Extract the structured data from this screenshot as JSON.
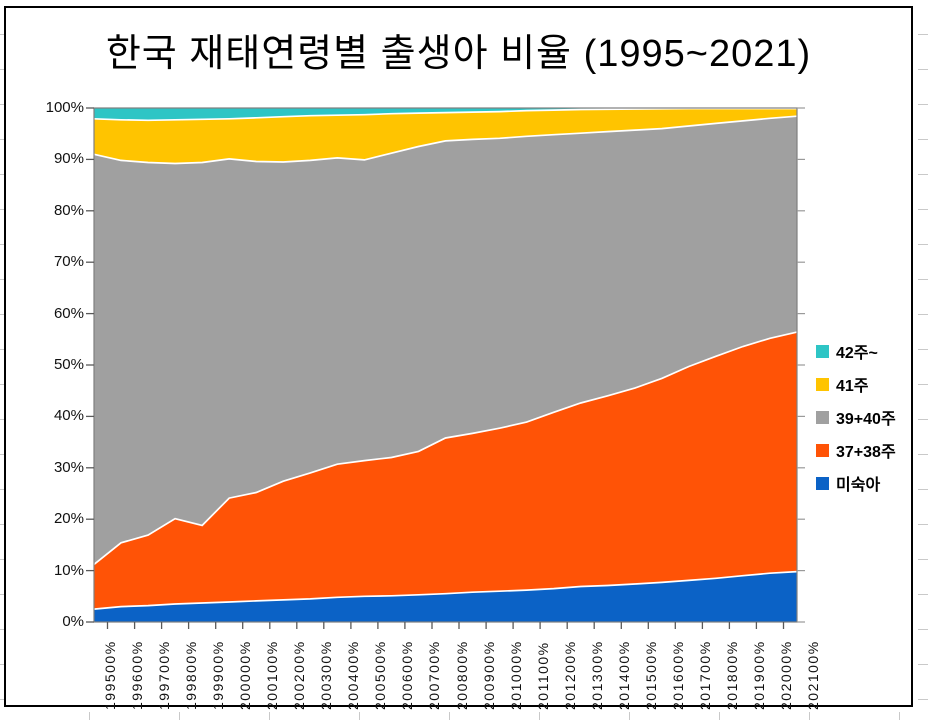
{
  "chart_title": "한국 재태연령별 출생아 비율 (1995~2021)",
  "colors": {
    "preterm_blue": "#0B62C6",
    "w3738_orange": "#FF5306",
    "w3940_gray": "#A0A0A0",
    "w41_yellow": "#FFC400",
    "w42_teal": "#2EC5C5",
    "plot_border": "#7f7f7f",
    "separator_white": "#ffffff",
    "text_black": "#111111"
  },
  "legend": {
    "items": [
      {
        "label": "42주~",
        "color": "#2EC5C5"
      },
      {
        "label": "41주",
        "color": "#FFC400"
      },
      {
        "label": "39+40주",
        "color": "#A0A0A0"
      },
      {
        "label": "37+38주",
        "color": "#FF5306"
      },
      {
        "label": "미숙아",
        "color": "#0B62C6"
      }
    ]
  },
  "chart_data": {
    "type": "area",
    "stacked": true,
    "title": "한국 재태연령별 출생아 비율 (1995~2021)",
    "x": [
      1995,
      1996,
      1997,
      1998,
      1999,
      2000,
      2001,
      2002,
      2003,
      2004,
      2005,
      2006,
      2007,
      2008,
      2009,
      2010,
      2011,
      2012,
      2013,
      2014,
      2015,
      2016,
      2017,
      2018,
      2019,
      2020,
      2021
    ],
    "x_tick_labels": [
      "199500%",
      "199600%",
      "199700%",
      "199800%",
      "199900%",
      "200000%",
      "200100%",
      "200200%",
      "200300%",
      "200400%",
      "200500%",
      "200600%",
      "200700%",
      "200800%",
      "200900%",
      "201000%",
      "201100%",
      "201200%",
      "201300%",
      "201400%",
      "201500%",
      "201600%",
      "201700%",
      "201800%",
      "201900%",
      "202000%",
      "202100%"
    ],
    "y_tick_labels": [
      "0%",
      "10%",
      "20%",
      "30%",
      "40%",
      "50%",
      "60%",
      "70%",
      "80%",
      "90%",
      "100%"
    ],
    "ylim": [
      0,
      100
    ],
    "grid": false,
    "legend_position": "right",
    "stack_order_bottom_to_top": [
      "미숙아",
      "37+38주",
      "39+40주",
      "41주",
      "42주~"
    ],
    "series": [
      {
        "name": "미숙아",
        "color": "#0B62C6",
        "values": [
          2.5,
          3.0,
          3.2,
          3.5,
          3.7,
          3.9,
          4.1,
          4.3,
          4.5,
          4.8,
          5.0,
          5.1,
          5.3,
          5.5,
          5.8,
          6.0,
          6.2,
          6.5,
          6.9,
          7.1,
          7.4,
          7.7,
          8.1,
          8.5,
          9.0,
          9.5,
          9.8
        ]
      },
      {
        "name": "37+38주",
        "color": "#FF5306",
        "values": [
          8.7,
          12.4,
          13.7,
          16.6,
          15.1,
          20.2,
          21.1,
          23.1,
          24.5,
          25.9,
          26.4,
          26.9,
          27.9,
          30.3,
          30.9,
          31.7,
          32.7,
          34.3,
          35.7,
          36.9,
          38.1,
          39.7,
          41.6,
          43.2,
          44.6,
          45.7,
          46.6
        ]
      },
      {
        "name": "39+40주",
        "color": "#A0A0A0",
        "values": [
          79.8,
          74.4,
          72.5,
          69.1,
          70.6,
          66.0,
          64.4,
          62.1,
          60.8,
          59.6,
          58.5,
          59.2,
          59.3,
          57.8,
          57.2,
          56.4,
          55.6,
          54.0,
          52.5,
          51.4,
          50.2,
          48.6,
          46.8,
          45.3,
          43.9,
          42.8,
          42.0
        ]
      },
      {
        "name": "41주",
        "color": "#FFC400",
        "values": [
          6.9,
          7.9,
          8.2,
          8.5,
          8.4,
          7.8,
          8.5,
          8.8,
          8.7,
          8.3,
          8.8,
          7.7,
          6.5,
          5.5,
          5.3,
          5.2,
          5.0,
          4.8,
          4.6,
          4.35,
          4.1,
          3.85,
          3.4,
          2.9,
          2.4,
          1.9,
          1.5
        ]
      },
      {
        "name": "42주~",
        "color": "#2EC5C5",
        "values": [
          2.1,
          2.3,
          2.4,
          2.3,
          2.2,
          2.1,
          1.9,
          1.7,
          1.5,
          1.4,
          1.3,
          1.1,
          1.0,
          0.9,
          0.8,
          0.7,
          0.5,
          0.4,
          0.3,
          0.25,
          0.2,
          0.15,
          0.1,
          0.1,
          0.1,
          0.1,
          0.1
        ]
      }
    ]
  }
}
